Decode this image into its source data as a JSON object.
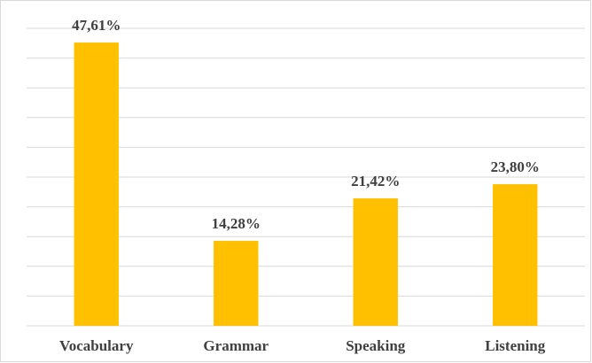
{
  "chart_data": {
    "type": "bar",
    "categories": [
      "Vocabulary",
      "Grammar",
      "Speaking",
      "Listening"
    ],
    "values": [
      47.61,
      14.28,
      21.42,
      23.8
    ],
    "value_labels": [
      "47,61%",
      "14,28%",
      "21,42%",
      "23,80%"
    ],
    "color": "#ffc000",
    "ylim": [
      0,
      50
    ],
    "yticks": [
      0,
      5,
      10,
      15,
      20,
      25,
      30,
      35,
      40,
      45,
      50
    ],
    "grid": true
  }
}
